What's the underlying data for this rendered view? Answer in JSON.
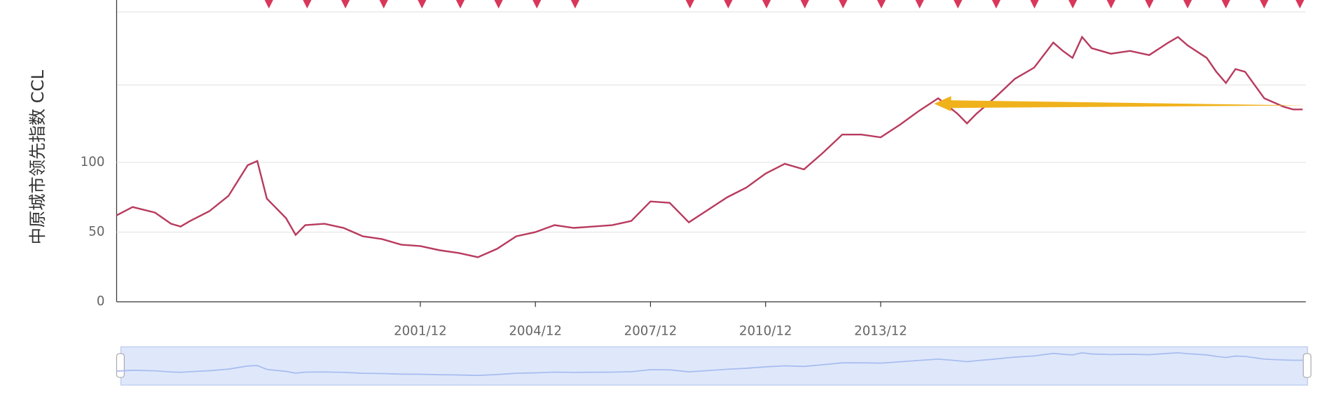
{
  "chart_data": {
    "type": "line",
    "y_label": "中原城市领先指数 CCL",
    "x": [
      "1994/01",
      "1994/06",
      "1995/01",
      "1995/06",
      "1995/09",
      "1995/12",
      "1996/06",
      "1996/12",
      "1997/06",
      "1997/09",
      "1997/12",
      "1998/06",
      "1998/09",
      "1998/12",
      "1999/06",
      "1999/12",
      "2000/06",
      "2000/12",
      "2001/06",
      "2001/12",
      "2002/06",
      "2002/12",
      "2003/06",
      "2003/12",
      "2004/06",
      "2004/12",
      "2005/06",
      "2005/12",
      "2006/06",
      "2006/12",
      "2007/06",
      "2007/12",
      "2008/06",
      "2008/12",
      "2009/06",
      "2009/12",
      "2010/06",
      "2010/12",
      "2011/06",
      "2011/12",
      "2012/06",
      "2012/12",
      "2013/06",
      "2013/12",
      "2014/06",
      "2014/12",
      "2015/06",
      "2015/12",
      "2016/03",
      "2016/06",
      "2016/12",
      "2017/06",
      "2017/12",
      "2018/06",
      "2018/09",
      "2018/12",
      "2019/03",
      "2019/06",
      "2019/12",
      "2020/06",
      "2020/12",
      "2021/06",
      "2021/09",
      "2021/12",
      "2022/06",
      "2022/09",
      "2022/12",
      "2023/03",
      "2023/06",
      "2023/12",
      "2024/06",
      "2024/09",
      "2024/12"
    ],
    "series": [
      {
        "name": "CCL",
        "color": "#b83b5e",
        "values": [
          62,
          68,
          64,
          56,
          54,
          58,
          65,
          76,
          98,
          101,
          74,
          60,
          48,
          55,
          56,
          53,
          47,
          45,
          41,
          40,
          37,
          35,
          32,
          38,
          47,
          50,
          55,
          53,
          54,
          55,
          58,
          72,
          71,
          57,
          66,
          75,
          82,
          92,
          99,
          95,
          107,
          120,
          120,
          118,
          127,
          137,
          146,
          135,
          128,
          135,
          147,
          160,
          168,
          186,
          180,
          175,
          190,
          182,
          178,
          180,
          177,
          186,
          190,
          184,
          175,
          165,
          157,
          167,
          165,
          146,
          140,
          138,
          138
        ]
      }
    ],
    "xlim": [
      "1994/01",
      "2025/01"
    ],
    "xticks": [
      "2001/12",
      "2004/12",
      "2007/12",
      "2010/12",
      "2013/12"
    ],
    "ylim": [
      0,
      208
    ],
    "yticks": [
      0,
      50,
      100
    ],
    "grid": true
  }
}
